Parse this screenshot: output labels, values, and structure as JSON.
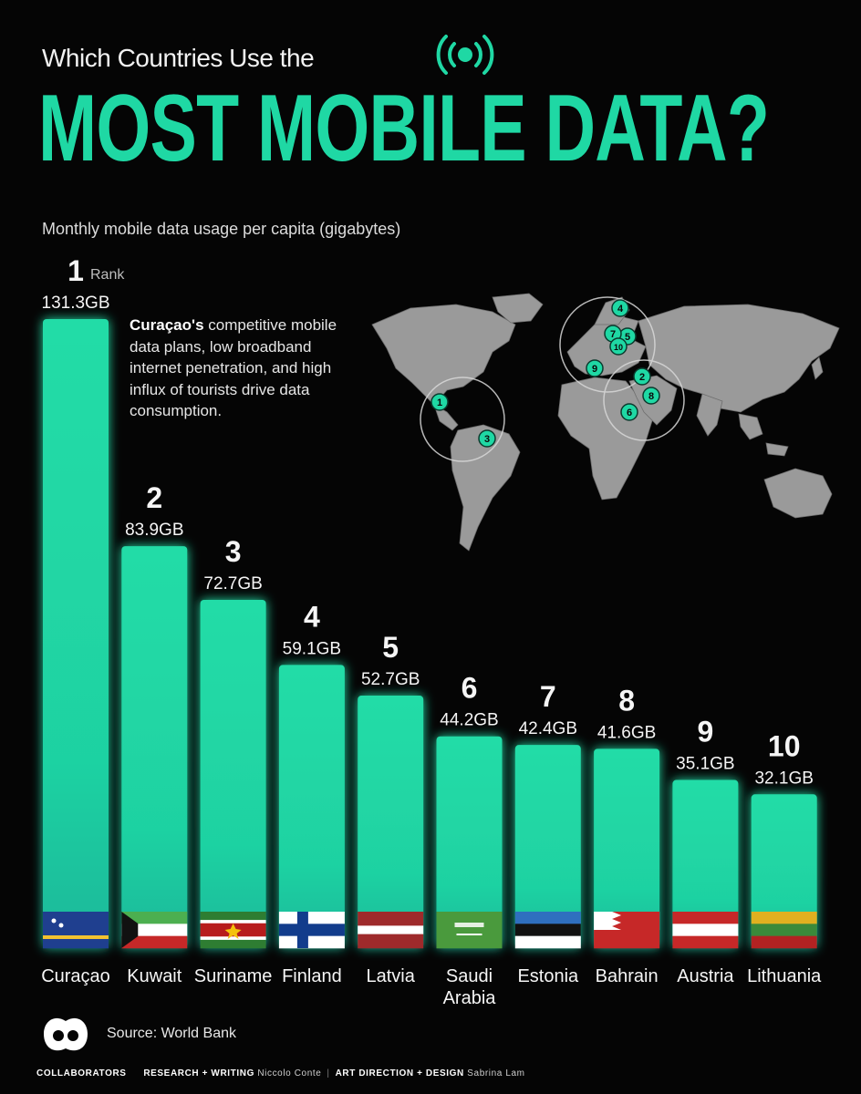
{
  "header": {
    "supertitle": "Which Countries Use the",
    "title": "MOST MOBILE DATA?",
    "subtitle": "Monthly mobile data usage per capita (gigabytes)",
    "icon": "broadcast-signal-icon"
  },
  "annotation": {
    "bold": "Curaçao's",
    "text": " competitive mobile data plans, low broadband internet penetration, and high influx of tourists drive data consumption."
  },
  "chart_data": {
    "type": "bar",
    "categories": [
      "Curaçao",
      "Kuwait",
      "Suriname",
      "Finland",
      "Latvia",
      "Saudi Arabia",
      "Estonia",
      "Bahrain",
      "Austria",
      "Lithuania"
    ],
    "category_lines": [
      [
        "Curaçao"
      ],
      [
        "Kuwait"
      ],
      [
        "Suriname"
      ],
      [
        "Finland"
      ],
      [
        "Latvia"
      ],
      [
        "Saudi",
        "Arabia"
      ],
      [
        "Estonia"
      ],
      [
        "Bahrain"
      ],
      [
        "Austria"
      ],
      [
        "Lithuania"
      ]
    ],
    "values": [
      131.3,
      83.9,
      72.7,
      59.1,
      52.7,
      44.2,
      42.4,
      41.6,
      35.1,
      32.1
    ],
    "value_labels": [
      "131.3GB",
      "83.9GB",
      "72.7GB",
      "59.1GB",
      "52.7GB",
      "44.2GB",
      "42.4GB",
      "41.6GB",
      "35.1GB",
      "32.1GB"
    ],
    "ranks": [
      "1",
      "2",
      "3",
      "4",
      "5",
      "6",
      "7",
      "8",
      "9",
      "10"
    ],
    "rank_label": "Rank",
    "unit": "GB",
    "ylim": [
      0,
      131.3
    ],
    "bar_color": "#1fd8a4",
    "grid": false,
    "legend": "none"
  },
  "map": {
    "markers": [
      "1",
      "2",
      "3",
      "4",
      "5",
      "6",
      "7",
      "8",
      "9",
      "10"
    ],
    "land_color": "#9a9a9a",
    "marker_color": "#1fd8a4"
  },
  "footer": {
    "source": "Source: World Bank",
    "brand": "COLLABORATORS",
    "research_label": "RESEARCH + WRITING",
    "research_name": "Niccolo Conte",
    "design_label": "ART DIRECTION + DESIGN",
    "design_name": "Sabrina Lam"
  },
  "colors": {
    "accent": "#1fd8a4",
    "background": "#050505"
  }
}
